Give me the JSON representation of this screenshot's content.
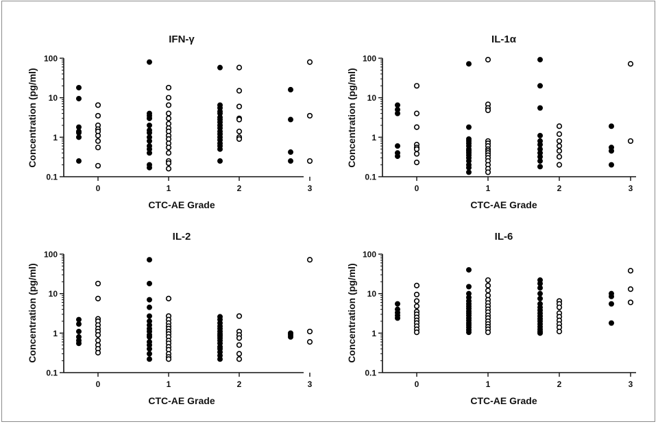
{
  "chart_data": [
    {
      "type": "scatter",
      "title": "IFN-γ",
      "xlabel": "CTC-AE Grade",
      "ylabel": "Concentration (pg/ml)",
      "x_ticks": [
        "0",
        "1",
        "2",
        "3"
      ],
      "y_ticks": [
        "0.1",
        "1",
        "10",
        "100"
      ],
      "y_scale": "log",
      "ylim": [
        0.1,
        100
      ],
      "series": [
        {
          "style": "filled",
          "points": [
            {
              "grade": 0,
              "values": [
                18,
                9.5,
                1.8,
                1.4,
                1.3,
                1.0,
                0.25
              ]
            },
            {
              "grade": 1,
              "values": [
                80,
                4.0,
                3.5,
                3.0,
                2.0,
                1.5,
                1.3,
                1.0,
                0.8,
                0.6,
                0.5,
                0.4,
                0.2,
                0.17
              ]
            },
            {
              "grade": 2,
              "values": [
                58,
                6.5,
                5.5,
                4.5,
                4.0,
                3.2,
                2.8,
                2.4,
                2.0,
                1.7,
                1.4,
                1.2,
                1.0,
                0.85,
                0.7,
                0.6,
                0.5,
                0.25
              ]
            },
            {
              "grade": 3,
              "values": [
                16,
                2.8,
                0.42,
                0.25
              ]
            }
          ]
        },
        {
          "style": "open",
          "points": [
            {
              "grade": 0,
              "values": [
                6.5,
                3.5,
                2.0,
                1.6,
                1.4,
                1.1,
                0.8,
                0.55,
                0.19
              ]
            },
            {
              "grade": 1,
              "values": [
                18,
                10,
                6.5,
                4.0,
                3.0,
                2.2,
                1.7,
                1.4,
                1.1,
                0.9,
                0.7,
                0.55,
                0.4,
                0.25,
                0.22,
                0.16
              ]
            },
            {
              "grade": 2,
              "values": [
                58,
                15,
                6.0,
                3.0,
                2.8,
                1.4,
                1.0,
                0.9
              ]
            },
            {
              "grade": 3,
              "values": [
                80,
                3.5,
                0.25
              ]
            }
          ]
        }
      ]
    },
    {
      "type": "scatter",
      "title": "IL-1α",
      "xlabel": "CTC-AE Grade",
      "ylabel": "Concentration (pg/ml)",
      "x_ticks": [
        "0",
        "1",
        "2",
        "3"
      ],
      "y_ticks": [
        "0.1",
        "1",
        "10",
        "100"
      ],
      "y_scale": "log",
      "ylim": [
        0.1,
        100
      ],
      "series": [
        {
          "style": "filled",
          "points": [
            {
              "grade": 0,
              "values": [
                6.5,
                5.0,
                4.0,
                0.6,
                0.4,
                0.33
              ]
            },
            {
              "grade": 1,
              "values": [
                72,
                1.8,
                0.9,
                0.8,
                0.7,
                0.6,
                0.5,
                0.45,
                0.4,
                0.35,
                0.3,
                0.25,
                0.2,
                0.17,
                0.13
              ]
            },
            {
              "grade": 2,
              "values": [
                92,
                20,
                5.5,
                1.1,
                0.8,
                0.65,
                0.5,
                0.4,
                0.32,
                0.25,
                0.18
              ]
            },
            {
              "grade": 3,
              "values": [
                1.9,
                0.55,
                0.45,
                0.2
              ]
            }
          ]
        },
        {
          "style": "open",
          "points": [
            {
              "grade": 0,
              "values": [
                20,
                4.0,
                1.8,
                0.65,
                0.55,
                0.5,
                0.38,
                0.23
              ]
            },
            {
              "grade": 1,
              "values": [
                92,
                6.8,
                5.5,
                4.8,
                0.8,
                0.7,
                0.6,
                0.5,
                0.45,
                0.4,
                0.35,
                0.3,
                0.25,
                0.2,
                0.16,
                0.13
              ]
            },
            {
              "grade": 2,
              "values": [
                1.9,
                1.2,
                0.8,
                0.6,
                0.45,
                0.32,
                0.2
              ]
            },
            {
              "grade": 3,
              "values": [
                72,
                0.8
              ]
            }
          ]
        }
      ]
    },
    {
      "type": "scatter",
      "title": "IL-2",
      "xlabel": "CTC-AE Grade",
      "ylabel": "Concentration (pg/ml)",
      "x_ticks": [
        "0",
        "1",
        "2",
        "3"
      ],
      "y_ticks": [
        "0.1",
        "1",
        "10",
        "100"
      ],
      "y_scale": "log",
      "ylim": [
        0.1,
        100
      ],
      "series": [
        {
          "style": "filled",
          "points": [
            {
              "grade": 0,
              "values": [
                2.2,
                1.7,
                1.1,
                0.8,
                0.65,
                0.55
              ]
            },
            {
              "grade": 1,
              "values": [
                72,
                18,
                7.0,
                4.5,
                2.7,
                2.0,
                1.6,
                1.3,
                1.1,
                0.9,
                0.8,
                0.6,
                0.5,
                0.4,
                0.3,
                0.22
              ]
            },
            {
              "grade": 2,
              "values": [
                2.6,
                2.2,
                1.8,
                1.5,
                1.3,
                1.1,
                0.95,
                0.85,
                0.75,
                0.65,
                0.55,
                0.45,
                0.4,
                0.33,
                0.27,
                0.22
              ]
            },
            {
              "grade": 3,
              "values": [
                1.0,
                0.9,
                0.8
              ]
            }
          ]
        },
        {
          "style": "open",
          "points": [
            {
              "grade": 0,
              "values": [
                18,
                7.5,
                2.3,
                2.0,
                1.6,
                1.3,
                1.1,
                0.9,
                0.65,
                0.5,
                0.4,
                0.32
              ]
            },
            {
              "grade": 1,
              "values": [
                7.5,
                2.7,
                2.2,
                1.8,
                1.5,
                1.3,
                1.1,
                0.95,
                0.8,
                0.65,
                0.55,
                0.45,
                0.38,
                0.3,
                0.25,
                0.22
              ]
            },
            {
              "grade": 2,
              "values": [
                2.7,
                1.1,
                0.9,
                0.75,
                0.5,
                0.3,
                0.22
              ]
            },
            {
              "grade": 3,
              "values": [
                72,
                1.1,
                0.6
              ]
            }
          ]
        }
      ]
    },
    {
      "type": "scatter",
      "title": "IL-6",
      "xlabel": "CTC-AE Grade",
      "ylabel": "Concentration (pg/ml)",
      "x_ticks": [
        "0",
        "1",
        "2",
        "3"
      ],
      "y_ticks": [
        "0.1",
        "1",
        "10",
        "100"
      ],
      "y_scale": "log",
      "ylim": [
        0.1,
        100
      ],
      "series": [
        {
          "style": "filled",
          "points": [
            {
              "grade": 0,
              "values": [
                5.5,
                4.0,
                3.3,
                2.8,
                2.4
              ]
            },
            {
              "grade": 1,
              "values": [
                40,
                15,
                10,
                8.0,
                6.5,
                5.5,
                4.8,
                4.2,
                3.6,
                3.2,
                2.8,
                2.4,
                2.1,
                1.8,
                1.6,
                1.4,
                1.2,
                1.05
              ]
            },
            {
              "grade": 2,
              "values": [
                22,
                18,
                14,
                10,
                7.5,
                5.5,
                4.5,
                3.8,
                3.2,
                2.7,
                2.3,
                2.0,
                1.7,
                1.45,
                1.25,
                1.1,
                1.0
              ]
            },
            {
              "grade": 3,
              "values": [
                10,
                8.5,
                5.5,
                1.8
              ]
            }
          ]
        },
        {
          "style": "open",
          "points": [
            {
              "grade": 0,
              "values": [
                16,
                9.5,
                6.5,
                4.8,
                3.5,
                3.0,
                2.5,
                2.1,
                1.8,
                1.5,
                1.25,
                1.05
              ]
            },
            {
              "grade": 1,
              "values": [
                22,
                16,
                12,
                9.0,
                7.0,
                5.8,
                4.8,
                4.0,
                3.4,
                2.8,
                2.4,
                2.0,
                1.7,
                1.45,
                1.25,
                1.05
              ]
            },
            {
              "grade": 2,
              "values": [
                6.5,
                5.5,
                4.5,
                3.2,
                2.6,
                2.1,
                1.7,
                1.4,
                1.1
              ]
            },
            {
              "grade": 3,
              "values": [
                38,
                13,
                6.0
              ]
            }
          ]
        }
      ]
    }
  ]
}
